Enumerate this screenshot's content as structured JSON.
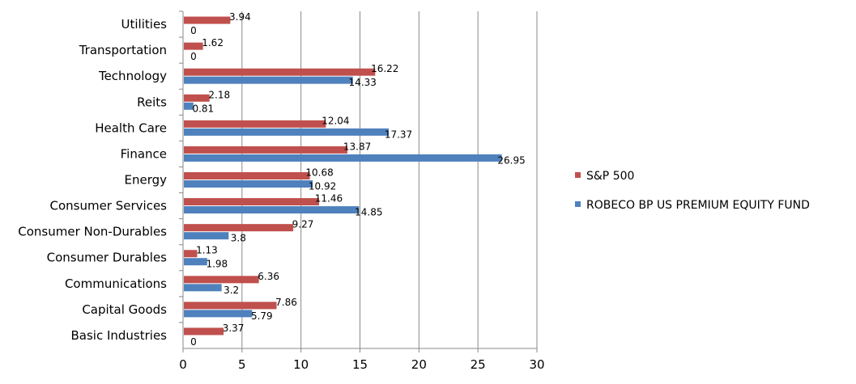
{
  "chart_data": {
    "type": "bar",
    "orientation": "horizontal",
    "categories": [
      "Basic Industries",
      "Capital Goods",
      "Communications",
      "Consumer Durables",
      "Consumer Non-Durables",
      "Consumer Services",
      "Energy",
      "Finance",
      "Health Care",
      "Reits",
      "Technology",
      "Transportation",
      "Utilities"
    ],
    "series": [
      {
        "name": "S&P 500",
        "color": "#C0504D",
        "values": [
          3.37,
          7.86,
          6.36,
          1.13,
          9.27,
          11.46,
          10.68,
          13.87,
          12.04,
          2.18,
          16.22,
          1.62,
          3.94
        ]
      },
      {
        "name": "ROBECO BP US PREMIUM EQUITY FUND",
        "color": "#4F81BD",
        "values": [
          0,
          5.79,
          3.2,
          1.98,
          3.8,
          14.85,
          10.92,
          26.95,
          17.37,
          0.81,
          14.33,
          0,
          0
        ]
      }
    ],
    "xlim": [
      0,
      30
    ],
    "xticks": [
      0,
      5,
      10,
      15,
      20,
      25,
      30
    ],
    "grid": "vertical",
    "legend_position": "right",
    "title": "",
    "xlabel": "",
    "ylabel": ""
  }
}
